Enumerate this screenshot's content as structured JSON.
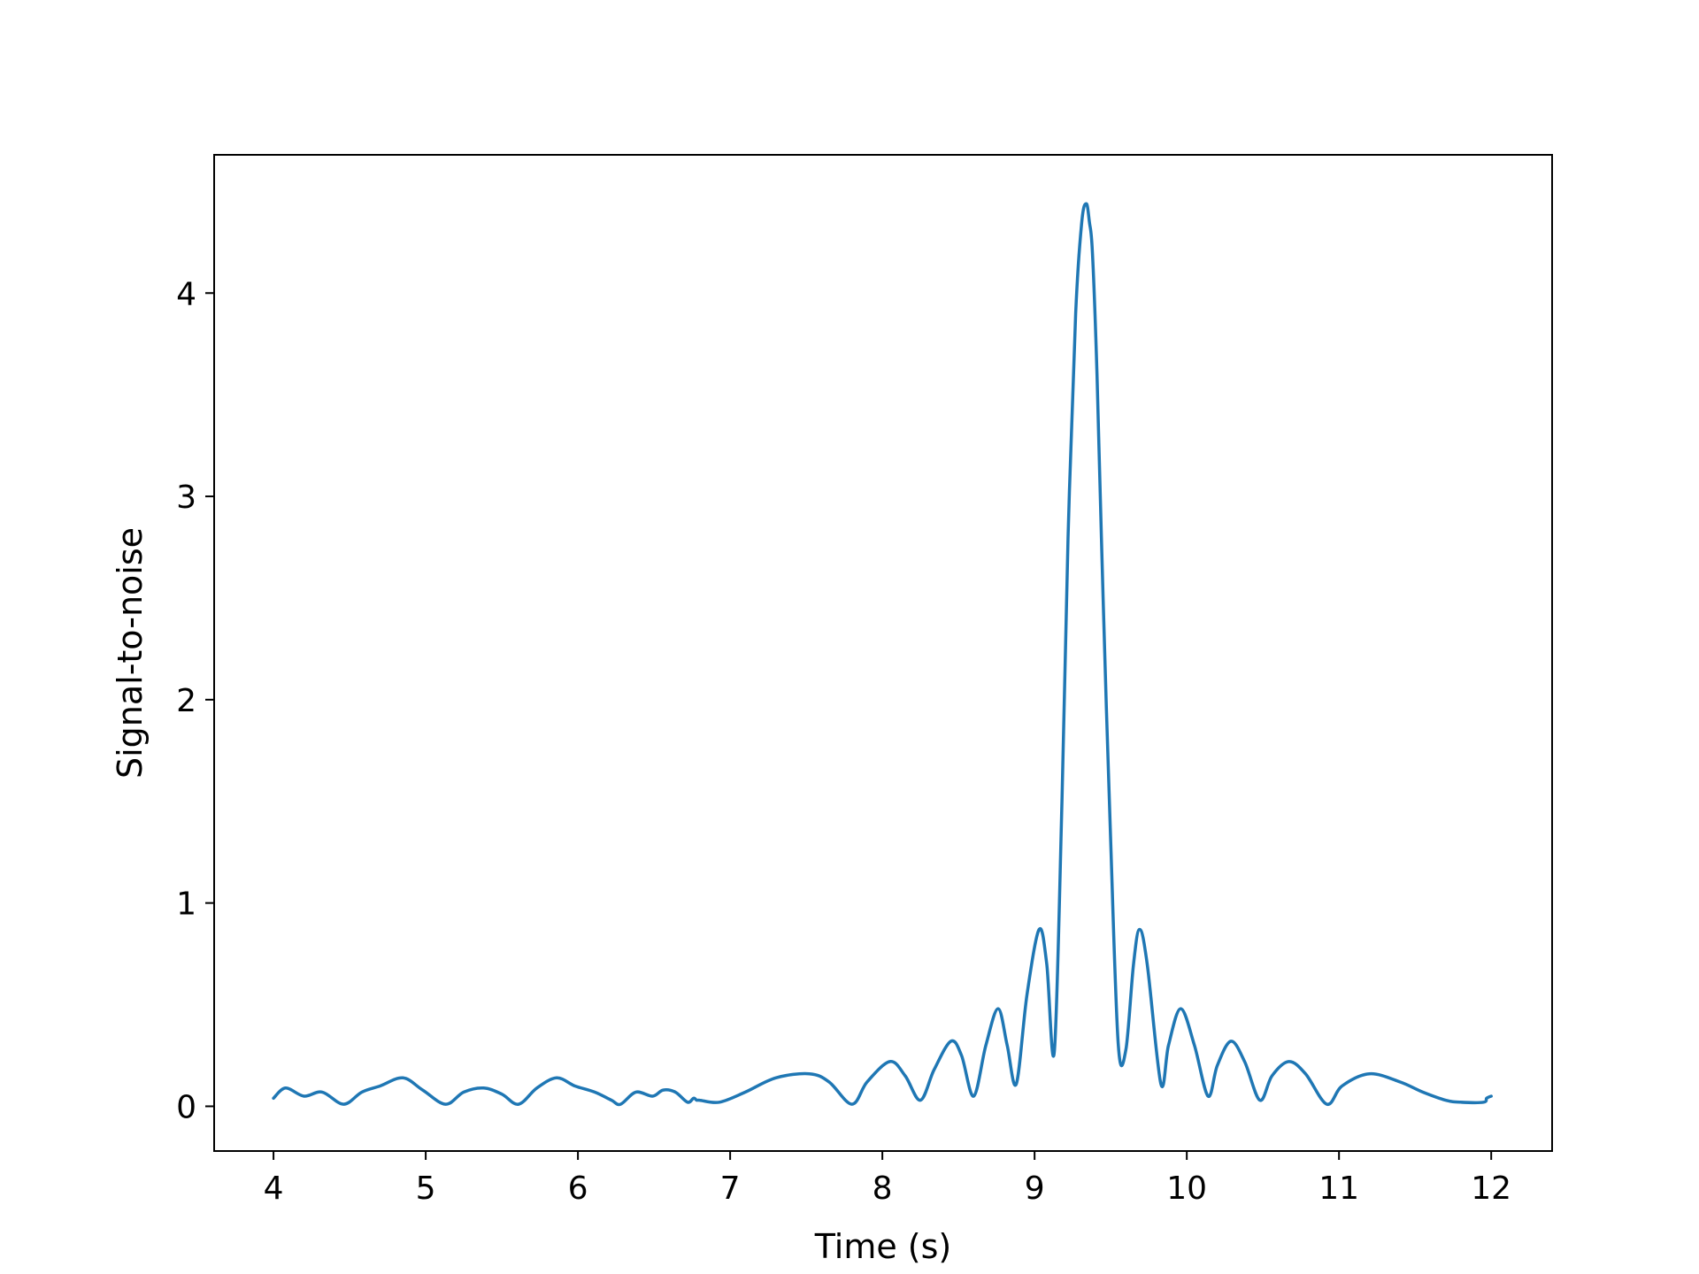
{
  "chart_data": {
    "type": "line",
    "title": "",
    "xlabel": "Time (s)",
    "ylabel": "Signal-to-noise",
    "xlim": [
      3.61,
      12.4
    ],
    "ylim": [
      -0.22,
      4.68
    ],
    "x_ticks": [
      4,
      5,
      6,
      7,
      8,
      9,
      10,
      11,
      12
    ],
    "y_ticks": [
      0,
      1,
      2,
      3,
      4
    ],
    "grid": false,
    "legend": "none",
    "line_color": "#1f77b4",
    "series": [
      {
        "x": [
          4.0,
          4.08,
          4.2,
          4.32,
          4.46,
          4.58,
          4.7,
          4.85,
          4.98,
          5.13,
          5.25,
          5.38,
          5.5,
          5.61,
          5.73,
          5.86,
          5.98,
          6.11,
          6.22,
          6.28,
          6.38,
          6.49,
          6.56,
          6.64,
          6.72,
          6.76,
          6.78,
          6.8,
          6.93,
          7.1,
          7.3,
          7.52,
          7.65,
          7.8,
          7.9,
          8.05,
          8.15,
          8.25,
          8.34,
          8.45,
          8.52,
          8.6,
          8.68,
          8.76,
          8.82,
          8.88,
          8.95,
          9.03,
          9.08,
          9.13,
          9.18,
          9.22,
          9.27,
          9.31,
          9.34,
          9.36,
          9.38,
          9.41,
          9.45,
          9.5,
          9.55,
          9.6,
          9.65,
          9.69,
          9.74,
          9.83,
          9.88,
          9.96,
          10.05,
          10.14,
          10.2,
          10.29,
          10.38,
          10.48,
          10.56,
          10.67,
          10.78,
          10.92,
          11.02,
          11.2,
          11.4,
          11.55,
          11.7,
          11.8,
          11.95,
          11.97,
          12.0
        ],
        "y": [
          0.04,
          0.09,
          0.05,
          0.07,
          0.01,
          0.07,
          0.1,
          0.14,
          0.08,
          0.01,
          0.07,
          0.09,
          0.06,
          0.01,
          0.09,
          0.14,
          0.1,
          0.07,
          0.03,
          0.01,
          0.07,
          0.05,
          0.08,
          0.07,
          0.02,
          0.04,
          0.03,
          0.03,
          0.02,
          0.07,
          0.14,
          0.16,
          0.12,
          0.01,
          0.12,
          0.22,
          0.15,
          0.03,
          0.18,
          0.32,
          0.25,
          0.05,
          0.3,
          0.48,
          0.3,
          0.11,
          0.55,
          0.87,
          0.7,
          0.27,
          1.5,
          2.8,
          3.9,
          4.35,
          4.44,
          4.35,
          4.2,
          3.6,
          2.5,
          1.3,
          0.3,
          0.28,
          0.7,
          0.87,
          0.7,
          0.11,
          0.3,
          0.48,
          0.3,
          0.05,
          0.2,
          0.32,
          0.22,
          0.03,
          0.15,
          0.22,
          0.16,
          0.01,
          0.1,
          0.16,
          0.12,
          0.07,
          0.03,
          0.02,
          0.02,
          0.04,
          0.05
        ]
      }
    ]
  }
}
